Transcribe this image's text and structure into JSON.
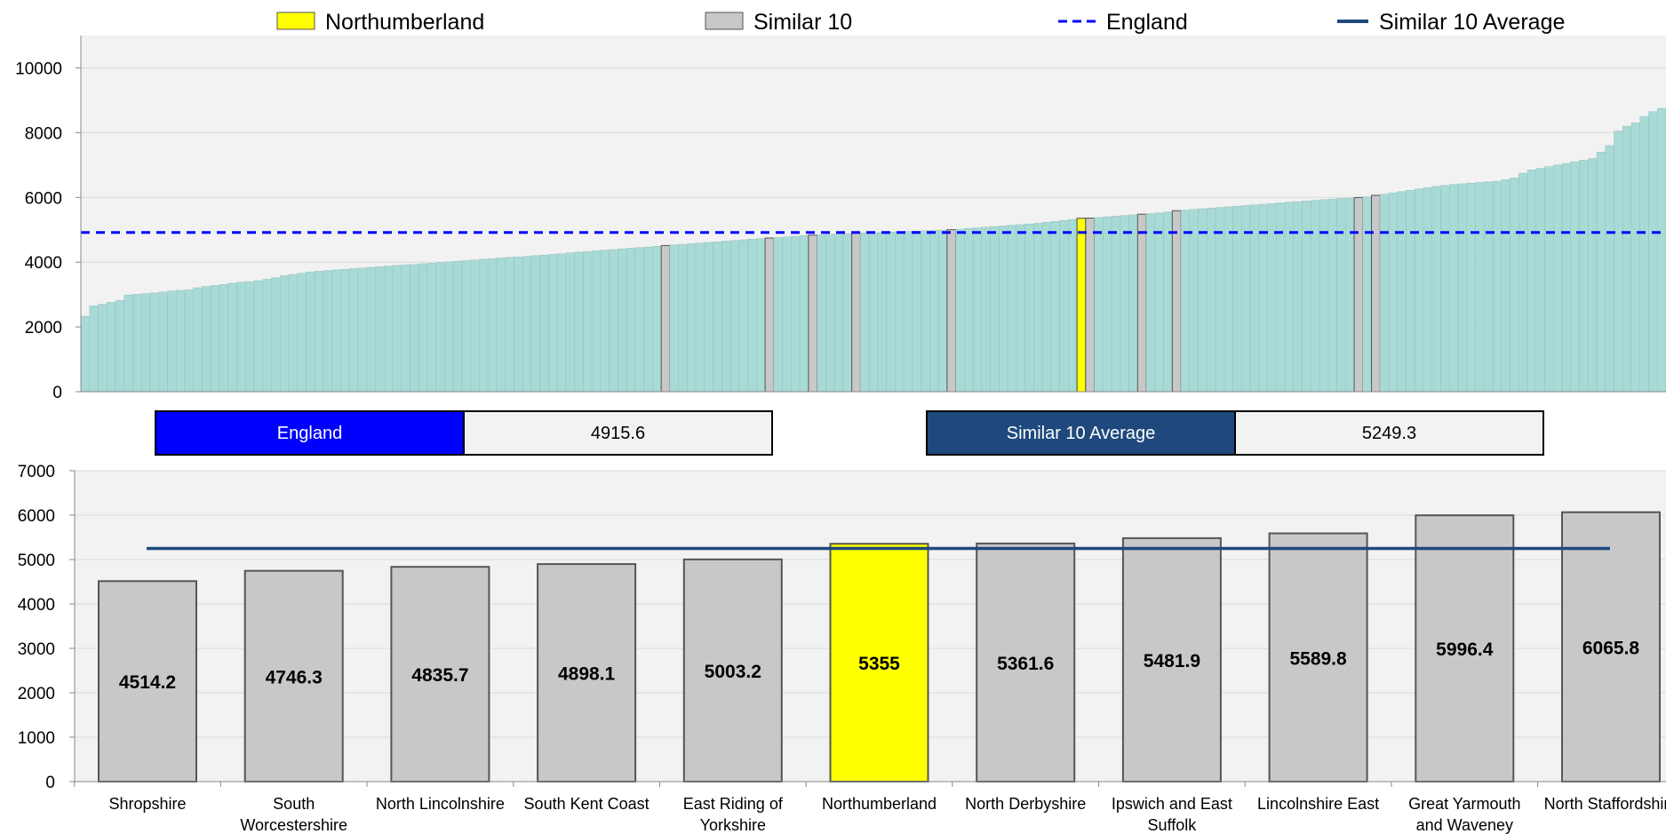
{
  "legend": {
    "northumberland": "Northumberland",
    "similar10": "Similar 10",
    "england": "England",
    "similar10_average": "Similar 10 Average"
  },
  "colors": {
    "all_areas": "#a8dad6",
    "similar": "#c8c8c8",
    "highlight": "#ffff00",
    "england_line": "#0000ff",
    "average_line": "#1f497d",
    "plot_bg": "#f2f2f2",
    "england_box": "#0000ff",
    "average_box": "#1f497d"
  },
  "summary": {
    "england_label": "England",
    "england_value": "4915.6",
    "average_label": "Similar 10 Average",
    "average_value": "5249.3"
  },
  "chart_data": [
    {
      "type": "bar",
      "description_note": "",
      "ylim": [
        0,
        11000
      ],
      "yticks": [
        0,
        2000,
        4000,
        6000,
        8000,
        10000
      ],
      "england_value": 4915.6,
      "values": [
        2330,
        2650,
        2700,
        2760,
        2820,
        2990,
        3010,
        3030,
        3050,
        3080,
        3110,
        3130,
        3150,
        3210,
        3250,
        3280,
        3310,
        3350,
        3380,
        3400,
        3430,
        3470,
        3520,
        3580,
        3620,
        3660,
        3700,
        3720,
        3740,
        3760,
        3780,
        3800,
        3820,
        3840,
        3860,
        3880,
        3900,
        3920,
        3930,
        3950,
        3970,
        3990,
        4010,
        4030,
        4050,
        4070,
        4090,
        4110,
        4130,
        4150,
        4160,
        4180,
        4200,
        4220,
        4240,
        4260,
        4290,
        4310,
        4330,
        4350,
        4370,
        4390,
        4410,
        4430,
        4450,
        4470,
        4490,
        4514.2,
        4530,
        4550,
        4570,
        4590,
        4610,
        4630,
        4650,
        4670,
        4690,
        4710,
        4730,
        4746.3,
        4760,
        4780,
        4800,
        4820,
        4835.7,
        4850,
        4860,
        4870,
        4880,
        4898.1,
        4905,
        4910,
        4920,
        4930,
        4940,
        4950,
        4960,
        4970,
        4980,
        4990,
        5003.2,
        5020,
        5040,
        5060,
        5080,
        5100,
        5120,
        5140,
        5160,
        5180,
        5200,
        5230,
        5260,
        5290,
        5320,
        5355,
        5361.6,
        5380,
        5400,
        5420,
        5440,
        5460,
        5481.9,
        5500,
        5520,
        5550,
        5589.8,
        5610,
        5630,
        5650,
        5670,
        5690,
        5710,
        5730,
        5750,
        5770,
        5790,
        5810,
        5830,
        5850,
        5870,
        5890,
        5910,
        5930,
        5950,
        5970,
        5980,
        5996.4,
        6020,
        6065.8,
        6100,
        6140,
        6180,
        6220,
        6260,
        6300,
        6340,
        6370,
        6400,
        6420,
        6440,
        6460,
        6480,
        6500,
        6550,
        6600,
        6750,
        6850,
        6900,
        6950,
        7000,
        7050,
        7100,
        7150,
        7200,
        7400,
        7600,
        8050,
        8200,
        8300,
        8500,
        8650,
        8750
      ],
      "similar_values": [
        4514.2,
        4746.3,
        4835.7,
        4898.1,
        5003.2,
        5361.6,
        5481.9,
        5589.8,
        5996.4,
        6065.8
      ],
      "highlight_value": 5355
    },
    {
      "type": "bar",
      "categories": [
        "Shropshire",
        "South Worcestershire",
        "North Lincolnshire",
        "South Kent Coast",
        "East Riding of Yorkshire",
        "Northumberland",
        "North Derbyshire",
        "Ipswich and East Suffolk",
        "Lincolnshire East",
        "Great Yarmouth and Waveney",
        "North Staffordshire"
      ],
      "values": [
        4514.2,
        4746.3,
        4835.7,
        4898.1,
        5003.2,
        5355,
        5361.6,
        5481.9,
        5589.8,
        5996.4,
        6065.8
      ],
      "value_labels": [
        "4514.2",
        "4746.3",
        "4835.7",
        "4898.1",
        "5003.2",
        "5355",
        "5361.6",
        "5481.9",
        "5589.8",
        "5996.4",
        "6065.8"
      ],
      "highlight_index": 5,
      "average_value": 5249.3,
      "ylim": [
        0,
        7000
      ],
      "yticks": [
        0,
        1000,
        2000,
        3000,
        4000,
        5000,
        6000,
        7000
      ]
    }
  ]
}
